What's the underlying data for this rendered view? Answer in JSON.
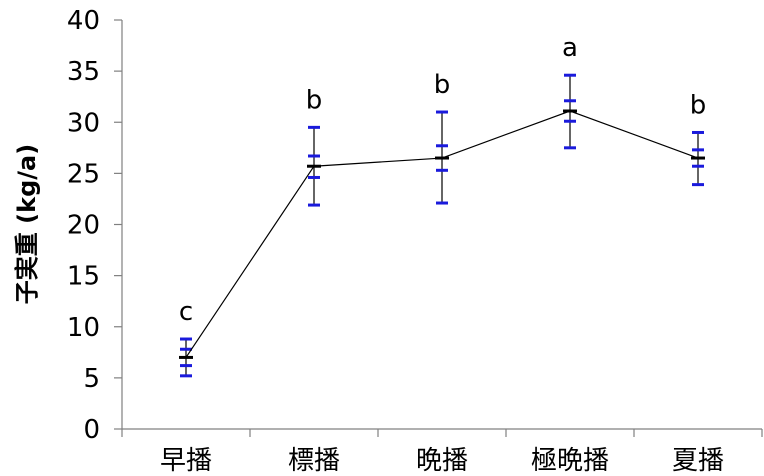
{
  "chart_data": {
    "type": "line",
    "categories": [
      "早播",
      "標播",
      "晩播",
      "極晩播",
      "夏播"
    ],
    "series": [
      {
        "values": [
          7.0,
          25.7,
          26.5,
          31.1,
          26.5
        ],
        "se_low": [
          6.2,
          24.6,
          25.3,
          30.1,
          25.7
        ],
        "se_high": [
          7.8,
          26.7,
          27.7,
          32.1,
          27.3
        ],
        "range_low": [
          5.2,
          21.9,
          22.1,
          27.5,
          23.9
        ],
        "range_high": [
          8.8,
          29.5,
          31.0,
          34.6,
          29.0
        ]
      }
    ],
    "significance_letters": [
      "c",
      "b",
      "b",
      "a",
      "b"
    ],
    "ylabel": "子実重 (kg/a)",
    "xlabel": "",
    "ylim": [
      0,
      40
    ],
    "yticks": [
      0,
      5,
      10,
      15,
      20,
      25,
      30,
      35,
      40
    ],
    "grid": false,
    "legend": "none",
    "colors": {
      "line": "#000000",
      "mean_marker": "#000000",
      "error_bar_caps": "#1a1adc",
      "axis": "#808080"
    }
  }
}
